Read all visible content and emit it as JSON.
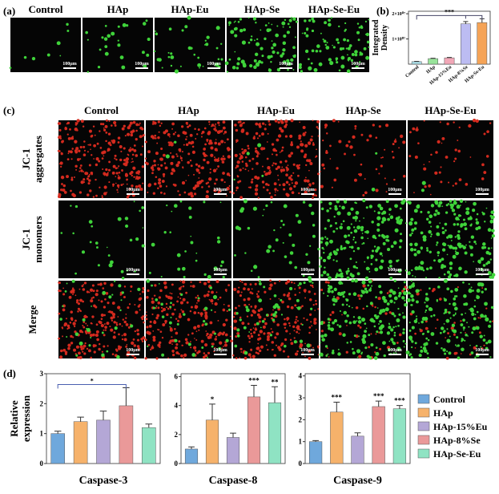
{
  "panels": {
    "a": {
      "label": "(a)",
      "columns": [
        "Control",
        "HAp",
        "HAp-Eu",
        "HAp-Se",
        "HAp-Se-Eu"
      ],
      "scale_bar": "100μm"
    },
    "b": {
      "label": "(b)"
    },
    "c": {
      "label": "(c)",
      "columns": [
        "Control",
        "HAp",
        "HAp-Eu",
        "HAp-Se",
        "HAp-Se-Eu"
      ],
      "rows": [
        [
          "JC-1",
          "aggregates"
        ],
        [
          "JC-1",
          "monomers"
        ],
        [
          "Merge"
        ]
      ],
      "scale_bar": "100μm"
    },
    "d": {
      "label": "(d)"
    }
  },
  "chart_data": [
    {
      "type": "bar",
      "y_label": [
        "Integrated",
        "Density"
      ],
      "categories": [
        "Control",
        "HAp",
        "HAp-15%Eu",
        "HAp-8%Se",
        "HAp-Se-Eu"
      ],
      "values": [
        1000000,
        2200000,
        2500000,
        16000000,
        16500000
      ],
      "errors": [
        100000,
        150000,
        150000,
        900000,
        1500000
      ],
      "colors": [
        "#a9dbe3",
        "#98e39a",
        "#f2a7b7",
        "#bcbcf2",
        "#f5a356"
      ],
      "ylim": [
        0,
        21000000
      ],
      "yticks": [
        {
          "value": 10000000,
          "label": "1×10⁰⁷"
        },
        {
          "value": 20000000,
          "label": "2×10⁰⁷"
        }
      ],
      "bracket": "***"
    },
    {
      "type": "bar",
      "y_label": [
        "Relative",
        "expression"
      ],
      "x_label": "Caspase-3",
      "categories": [
        "Control",
        "HAp",
        "HAp-15%Eu",
        "HAp-8%Se",
        "HAp-Se-Eu"
      ],
      "values": [
        1.0,
        1.4,
        1.45,
        1.93,
        1.2
      ],
      "errors": [
        0.08,
        0.15,
        0.3,
        0.6,
        0.12
      ],
      "colors": [
        "#6fa8dc",
        "#f6b26b",
        "#b4a7d6",
        "#ea9999",
        "#8fe3c3"
      ],
      "ylim": [
        0,
        3
      ],
      "yticks": [
        0,
        1,
        2,
        3
      ],
      "bracket": "*"
    },
    {
      "type": "bar",
      "x_label": "Caspase-8",
      "categories": [
        "Control",
        "HAp",
        "HAp-15%Eu",
        "HAp-8%Se",
        "HAp-Se-Eu"
      ],
      "values": [
        1.0,
        3.0,
        1.8,
        4.6,
        4.2
      ],
      "errors": [
        0.15,
        1.1,
        0.3,
        0.8,
        1.1
      ],
      "colors": [
        "#6fa8dc",
        "#f6b26b",
        "#b4a7d6",
        "#ea9999",
        "#8fe3c3"
      ],
      "ylim": [
        0,
        6.2
      ],
      "yticks": [
        0,
        2,
        4,
        6
      ],
      "significance": [
        null,
        "*",
        null,
        "***",
        "**"
      ]
    },
    {
      "type": "bar",
      "x_label": "Caspase-9",
      "categories": [
        "Control",
        "HAp",
        "HAp-15%Eu",
        "HAp-8%Se",
        "HAp-Se-Eu"
      ],
      "values": [
        1.0,
        2.35,
        1.25,
        2.6,
        2.5
      ],
      "errors": [
        0.05,
        0.45,
        0.15,
        0.25,
        0.15
      ],
      "colors": [
        "#6fa8dc",
        "#f6b26b",
        "#b4a7d6",
        "#ea9999",
        "#8fe3c3"
      ],
      "ylim": [
        0,
        4.1
      ],
      "yticks": [
        0,
        1,
        2,
        3,
        4
      ],
      "significance": [
        null,
        "***",
        null,
        "***",
        "***"
      ]
    }
  ]
}
